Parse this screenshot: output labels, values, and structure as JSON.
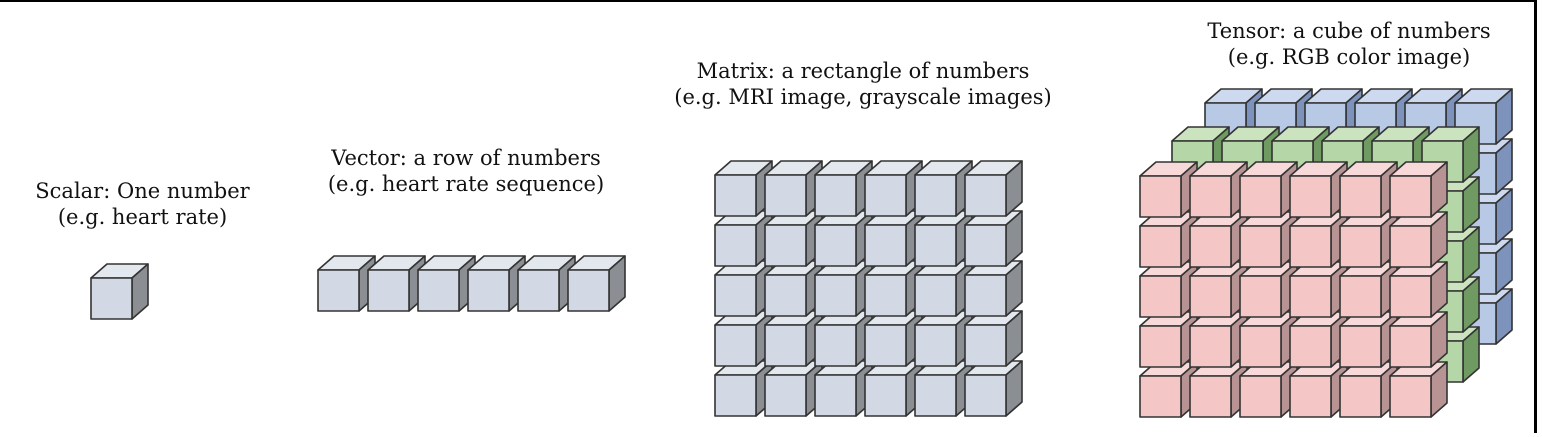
{
  "diagram": {
    "groups": [
      {
        "id": "scalar",
        "title": "Scalar:  One number",
        "example": "(e.g. heart rate)",
        "rows": 1,
        "cols": 1,
        "layers": 1
      },
      {
        "id": "vector",
        "title": "Vector: a row of numbers",
        "example": "(e.g. heart rate sequence)",
        "rows": 1,
        "cols": 6,
        "layers": 1
      },
      {
        "id": "matrix",
        "title": "Matrix: a rectangle of numbers",
        "example": "(e.g. MRI image, grayscale images)",
        "rows": 5,
        "cols": 6,
        "layers": 1
      },
      {
        "id": "tensor",
        "title": "Tensor: a cube of numbers",
        "example": "(e.g. RGB color image)",
        "rows": 5,
        "cols": 6,
        "layers": 3
      }
    ],
    "colors": {
      "gray_front": "#d2d9e5",
      "gray_top": "#e3e8ef",
      "gray_side": "#8b8e92",
      "red_front": "#f4c6c6",
      "red_top": "#f7d9d9",
      "red_side": "#b89393",
      "green_front": "#b5d6a7",
      "green_top": "#cbe3bf",
      "green_side": "#6f9a62",
      "blue_front": "#b8c9e6",
      "blue_top": "#cdd9ee",
      "blue_side": "#7d93bb",
      "outline": "#333333"
    }
  }
}
